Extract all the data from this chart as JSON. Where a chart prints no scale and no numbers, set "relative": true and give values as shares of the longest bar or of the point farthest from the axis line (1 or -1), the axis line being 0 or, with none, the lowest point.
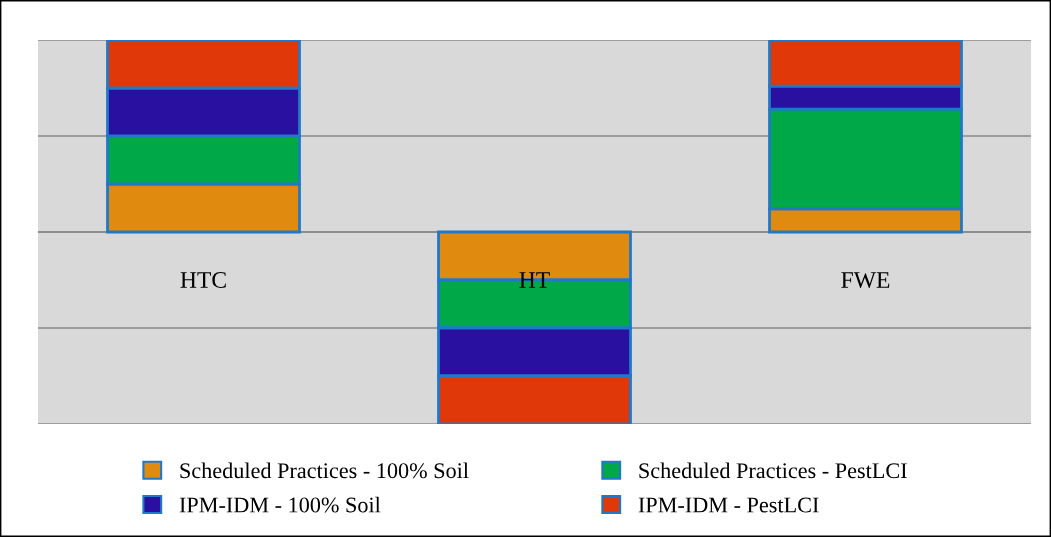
{
  "chart_data": {
    "type": "bar",
    "stacked": true,
    "relative": true,
    "categories": [
      "HTC",
      "HT",
      "FWE"
    ],
    "series": [
      {
        "name": "Scheduled Practices - 100% Soil",
        "color": "#e08a10",
        "values": [
          0.25,
          -0.25,
          0.12
        ]
      },
      {
        "name": "Scheduled Practices - PestLCI",
        "color": "#00a848",
        "values": [
          0.25,
          -0.25,
          0.52
        ]
      },
      {
        "name": "IPM-IDM - 100% Soil",
        "color": "#2a10a0",
        "values": [
          0.25,
          -0.25,
          0.12
        ]
      },
      {
        "name": "IPM-IDM - PestLCI",
        "color": "#e03808",
        "values": [
          0.25,
          -0.25,
          0.24
        ]
      }
    ],
    "grid": "y",
    "legend": "bottom"
  }
}
